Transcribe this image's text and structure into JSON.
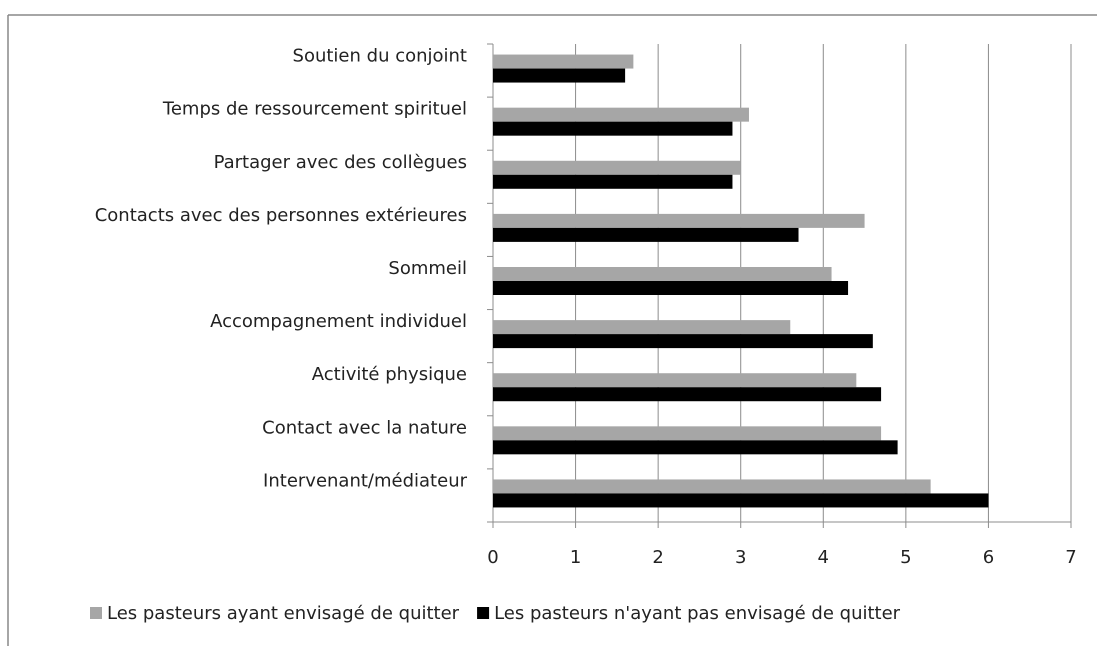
{
  "chart_data": {
    "type": "bar",
    "orientation": "horizontal",
    "categories": [
      "Soutien du conjoint",
      "Temps de ressourcement spirituel",
      "Partager avec des collègues",
      "Contacts avec des personnes extérieures",
      "Sommeil",
      "Accompagnement individuel",
      "Activité physique",
      "Contact avec la nature",
      "Intervenant/médiateur"
    ],
    "series": [
      {
        "name": "Les pasteurs ayant envisagé de quitter",
        "color": "#a6a6a6",
        "values": [
          1.7,
          3.1,
          3.0,
          4.5,
          4.1,
          3.6,
          4.4,
          4.7,
          5.3
        ]
      },
      {
        "name": "Les pasteurs n'ayant pas envisagé de quitter",
        "color": "#000000",
        "values": [
          1.6,
          2.9,
          2.9,
          3.7,
          4.3,
          4.6,
          4.7,
          4.9,
          6.0
        ]
      }
    ],
    "xlim": [
      0,
      7
    ],
    "xticks": [
      0,
      1,
      2,
      3,
      4,
      5,
      6,
      7
    ],
    "grid": true,
    "legend": "bottom"
  }
}
